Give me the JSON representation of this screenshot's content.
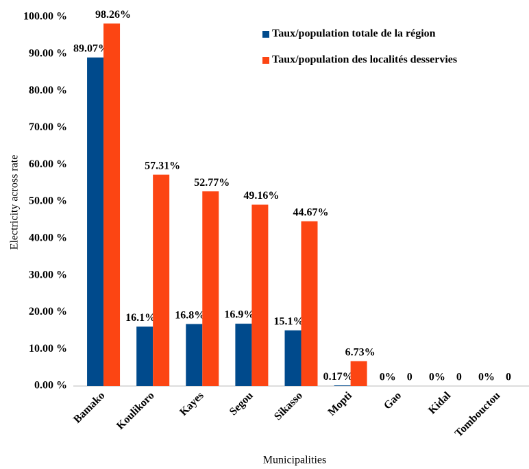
{
  "chart_data": {
    "type": "bar",
    "x_label": "Municipalities",
    "y_label": "Electricity across rate",
    "categories": [
      "Bamako",
      "Koulikoro",
      "Kayes",
      "Segou",
      "Sikasso",
      "Mopti",
      "Gao",
      "Kidal",
      "Tombouctou"
    ],
    "series": [
      {
        "name": "Taux/population totale de la région",
        "color": "#004a8c",
        "values": [
          89.07,
          16.1,
          16.8,
          16.9,
          15.1,
          0.17,
          0,
          0,
          0
        ],
        "value_labels": [
          "89.07%",
          "16.1%",
          "16.8%",
          "16.9%",
          "15.1%",
          "0.17%",
          "0%",
          "0%",
          "0%"
        ]
      },
      {
        "name": "Taux/population des localités desservies",
        "color": "#fc4513",
        "values": [
          98.26,
          57.31,
          52.77,
          49.16,
          44.67,
          6.73,
          0,
          0,
          0
        ],
        "value_labels": [
          "98.26%",
          "57.31%",
          "52.77%",
          "49.16%",
          "44.67%",
          "6.73%",
          "0",
          "0",
          "0"
        ]
      }
    ],
    "ylim": [
      0,
      100
    ],
    "yticks": [
      {
        "value": 0,
        "label": "0.00 %"
      },
      {
        "value": 10,
        "label": "10.00 %"
      },
      {
        "value": 20,
        "label": "20.00 %"
      },
      {
        "value": 30,
        "label": "30.00 %"
      },
      {
        "value": 40,
        "label": "40.00 %"
      },
      {
        "value": 50,
        "label": "50.00 %"
      },
      {
        "value": 60,
        "label": "60.00 %"
      },
      {
        "value": 70,
        "label": "70.00 %"
      },
      {
        "value": 80,
        "label": "80.00 %"
      },
      {
        "value": 90,
        "label": "90.00 %"
      },
      {
        "value": 100,
        "label": "100.00 %"
      }
    ],
    "legend": "top-right",
    "grid": false
  }
}
